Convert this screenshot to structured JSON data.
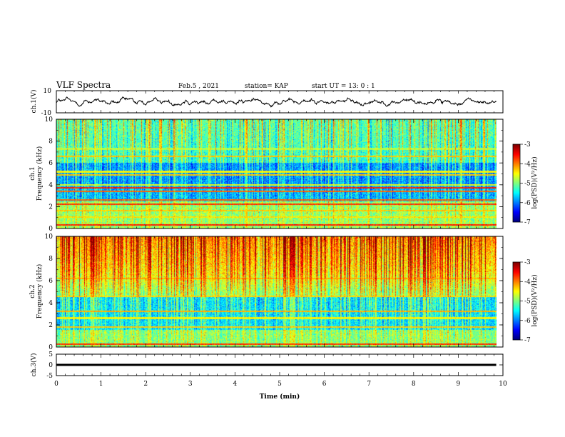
{
  "header": {
    "title": "VLF Spectra",
    "date": "Feb.5 , 2021",
    "station": "station= KAP",
    "start": "start UT = 13: 0 : 1"
  },
  "chart_data": [
    {
      "type": "line",
      "panel": "ch1-waveform",
      "ylabel": "ch.1(V)",
      "ylim": [
        -10,
        10
      ],
      "yticks": [
        10,
        -10
      ],
      "xlim": [
        0,
        10
      ],
      "color": "#000000",
      "note_values": "noisy waveform fluctuating around 0 V between about -7 and +6 V over 0–9.85 min"
    },
    {
      "type": "heatmap",
      "panel": "ch1-spectrogram",
      "ylabel": "ch.1\nFrequency (kHz)",
      "ylim": [
        0,
        10
      ],
      "yticks": [
        0,
        2,
        4,
        6,
        8,
        10
      ],
      "xlim": [
        0,
        10
      ],
      "x_data_end": 9.85,
      "colorbar": {
        "label": "log(PSD)(V²/Hz)",
        "min": -7,
        "max": -3,
        "ticks": [
          -3,
          -4,
          -5,
          -6,
          -7
        ]
      },
      "bands_khz": [
        {
          "f": 0.3,
          "level": -3.6
        },
        {
          "f": 1.0,
          "level": -4.4
        },
        {
          "f": 1.6,
          "level": -4.3
        },
        {
          "f": 2.2,
          "level": -3.7
        },
        {
          "f": 2.6,
          "level": -3.9
        },
        {
          "f": 3.4,
          "level": -3.9
        },
        {
          "f": 3.7,
          "level": -3.6
        },
        {
          "f": 4.0,
          "level": -4.6
        },
        {
          "f": 4.9,
          "level": -4.3
        },
        {
          "f": 5.2,
          "level": -4.5
        },
        {
          "f": 6.6,
          "level": -4.3
        },
        {
          "f": 7.3,
          "level": -4.8
        }
      ]
    },
    {
      "type": "heatmap",
      "panel": "ch2-spectrogram",
      "ylabel": "ch.2\nFrequency (kHz)",
      "ylim": [
        0,
        10
      ],
      "yticks": [
        0,
        2,
        4,
        6,
        8,
        10
      ],
      "xlim": [
        0,
        10
      ],
      "x_data_end": 9.85,
      "colorbar": {
        "label": "log(PSD)(V²/Hz)",
        "min": -7,
        "max": -3,
        "ticks": [
          -3,
          -4,
          -5,
          -6,
          -7
        ]
      },
      "bands_khz": [
        {
          "f": 0.2,
          "level": -3.7
        },
        {
          "f": 1.8,
          "level": -4.3
        },
        {
          "f": 2.6,
          "level": -4.5
        },
        {
          "f": 3.2,
          "level": -4.2
        },
        {
          "f": 4.6,
          "level": -4.4
        },
        {
          "f": 6.2,
          "level": -4.2
        }
      ]
    },
    {
      "type": "line",
      "panel": "ch3-waveform",
      "ylabel": "ch.3(V)",
      "ylim": [
        -5,
        5
      ],
      "yticks": [
        5,
        0,
        -5
      ],
      "xlim": [
        0,
        10
      ],
      "xlabel": "Time (min)",
      "xticks": [
        0,
        1,
        2,
        3,
        4,
        5,
        6,
        7,
        8,
        9,
        10
      ],
      "color": "#000000",
      "note_values": "dense oscillation around 0 V with amplitude about ±0.5 V, 0–9.85 min"
    }
  ],
  "colors": {
    "colormap": [
      "#00008f",
      "#0000ff",
      "#0080ff",
      "#00ffff",
      "#80ff80",
      "#ffff00",
      "#ff8000",
      "#ff0000",
      "#800000"
    ]
  }
}
